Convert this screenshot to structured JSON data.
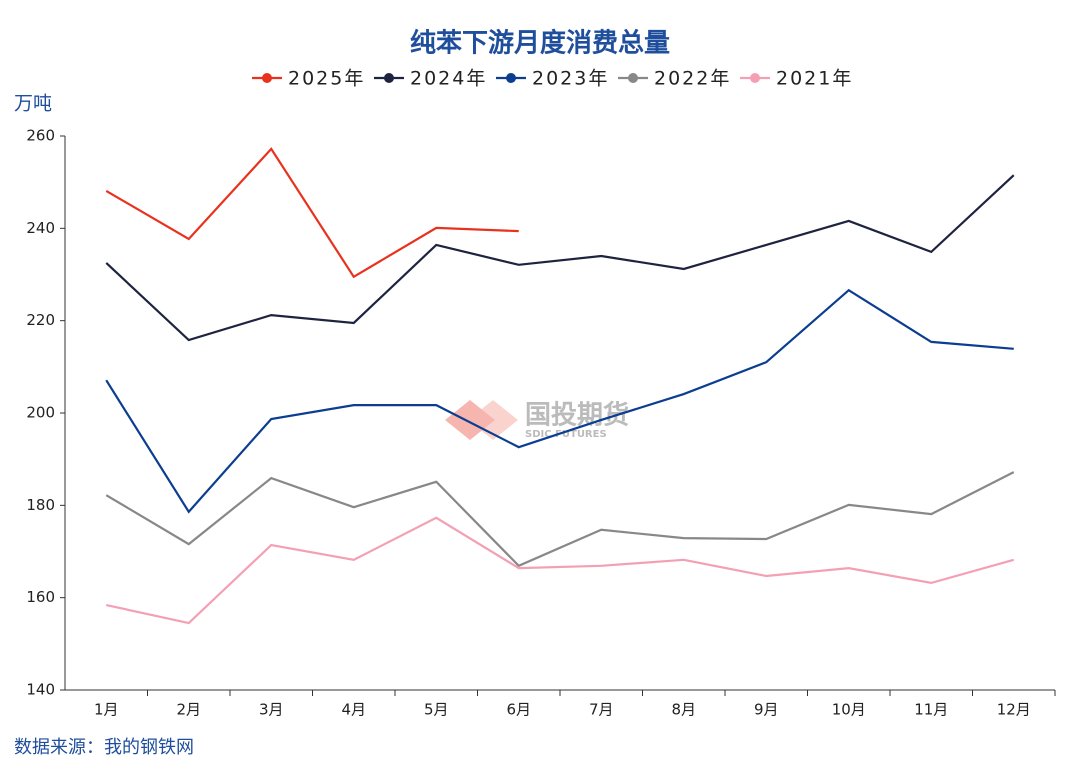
{
  "chart_data": {
    "type": "line",
    "title": "纯苯下游月度消费总量",
    "y_label": "万吨",
    "source": "数据来源：我的钢铁网",
    "watermark": "国投期货",
    "watermark_sub": "SDIC FUTURES",
    "categories": [
      "1月",
      "2月",
      "3月",
      "4月",
      "5月",
      "6月",
      "7月",
      "8月",
      "9月",
      "10月",
      "11月",
      "12月"
    ],
    "series": [
      {
        "name": "2025年",
        "color": "#e8321e",
        "values": [
          248.1,
          237.7,
          257.2,
          229.5,
          240.1,
          239.4,
          null,
          null,
          null,
          null,
          null,
          null
        ]
      },
      {
        "name": "2024年",
        "color": "#1e2340",
        "values": [
          232.5,
          215.8,
          221.2,
          219.5,
          236.4,
          232.1,
          234.0,
          231.2,
          236.4,
          241.6,
          234.9,
          251.5
        ]
      },
      {
        "name": "2023年",
        "color": "#0b3d91",
        "values": [
          207.1,
          178.6,
          198.7,
          201.7,
          201.7,
          192.6,
          198.5,
          204.1,
          211.0,
          226.6,
          215.4,
          213.9
        ]
      },
      {
        "name": "2022年",
        "color": "#888888",
        "values": [
          182.2,
          171.6,
          185.9,
          179.6,
          185.1,
          166.9,
          174.7,
          172.9,
          172.7,
          180.1,
          178.1,
          187.2
        ]
      },
      {
        "name": "2021年",
        "color": "#f4a0b4",
        "values": [
          158.4,
          154.5,
          171.4,
          168.2,
          177.3,
          166.4,
          166.9,
          168.2,
          164.7,
          166.4,
          163.2,
          168.2
        ]
      }
    ],
    "ylim": [
      140,
      260
    ],
    "yticks": [
      140,
      160,
      180,
      200,
      220,
      240,
      260
    ],
    "grid": false
  }
}
